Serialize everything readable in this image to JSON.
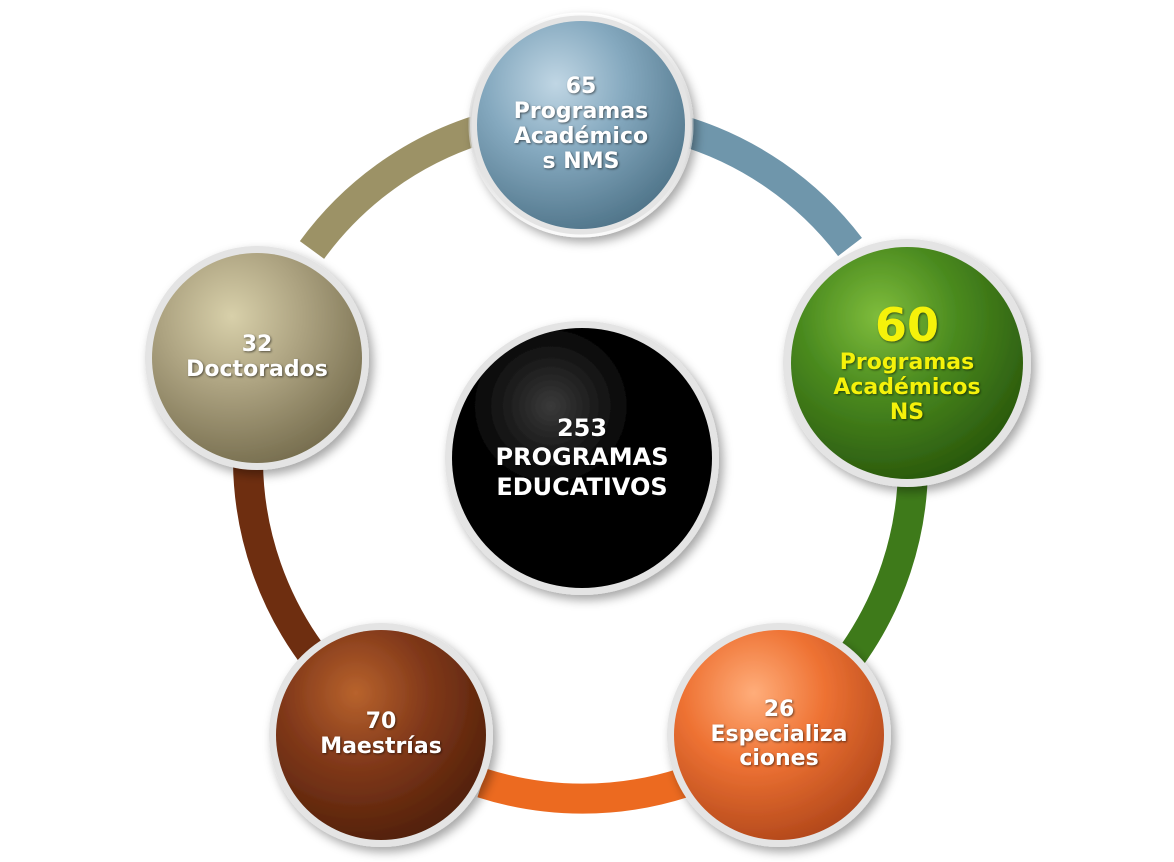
{
  "diagram": {
    "center": {
      "lines": [
        "253",
        "PROGRAMAS",
        "EDUCATIVOS"
      ],
      "color": "#000000"
    },
    "nodes": [
      {
        "id": "top",
        "lines": [
          "65",
          "Programas",
          "Académico",
          "s NMS"
        ],
        "color": "#7a9fb4",
        "text_color": "#ffffff"
      },
      {
        "id": "right",
        "lines": [
          "60",
          "Programas",
          "Académicos",
          "NS"
        ],
        "color": "#3e7a1a",
        "text_color": "#f5f20a"
      },
      {
        "id": "bottom-right",
        "lines": [
          "26",
          "Especializa",
          "ciones"
        ],
        "color": "#e9692a",
        "text_color": "#ffffff"
      },
      {
        "id": "bottom-left",
        "lines": [
          "70",
          "Maestrías"
        ],
        "color": "#7a3512",
        "text_color": "#ffffff"
      },
      {
        "id": "left",
        "lines": [
          "32",
          "Doctorados"
        ],
        "color": "#a69c74",
        "text_color": "#ffffff"
      }
    ],
    "connectors": [
      {
        "from": "top",
        "to": "right",
        "color": "#6f96ab"
      },
      {
        "from": "right",
        "to": "bottom-right",
        "color": "#3e7a1a"
      },
      {
        "from": "bottom-right",
        "to": "bottom-left",
        "color": "#ec6a20"
      },
      {
        "from": "bottom-left",
        "to": "left",
        "color": "#6e2e10"
      },
      {
        "from": "left",
        "to": "top",
        "color": "#9c9266"
      }
    ]
  }
}
